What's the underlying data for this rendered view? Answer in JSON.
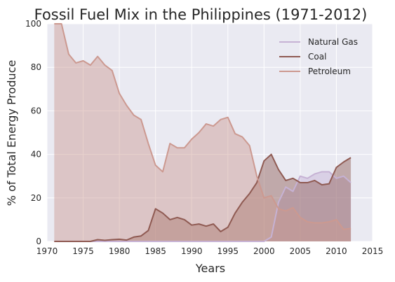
{
  "chart_data": {
    "type": "area",
    "title": "Fossil Fuel Mix in the Philippines (1971-2012)",
    "xlabel": "Years",
    "ylabel": "% of Total Energy Produce",
    "xlim": [
      1970,
      2015
    ],
    "ylim": [
      0,
      100
    ],
    "xticks": [
      1970,
      1975,
      1980,
      1985,
      1990,
      1995,
      2000,
      2005,
      2010,
      2015
    ],
    "yticks": [
      0,
      20,
      40,
      60,
      80,
      100
    ],
    "grid": true,
    "legend_position": "top-right",
    "x": [
      1971,
      1972,
      1973,
      1974,
      1975,
      1976,
      1977,
      1978,
      1979,
      1980,
      1981,
      1982,
      1983,
      1984,
      1985,
      1986,
      1987,
      1988,
      1989,
      1990,
      1991,
      1992,
      1993,
      1994,
      1995,
      1996,
      1997,
      1998,
      1999,
      2000,
      2001,
      2002,
      2003,
      2004,
      2005,
      2006,
      2007,
      2008,
      2009,
      2010,
      2011,
      2012
    ],
    "series": [
      {
        "name": "Natural Gas",
        "line_color": "#c6b2d4",
        "fill_color": "#c6b2d4",
        "values": [
          0,
          0,
          0,
          0,
          0,
          0,
          0,
          0,
          0,
          0,
          0,
          0,
          0,
          0,
          0,
          0,
          0,
          0,
          0,
          0,
          0,
          0,
          0,
          0,
          0,
          0,
          0,
          0,
          0,
          0,
          2,
          18,
          25,
          23,
          30,
          29,
          31,
          32,
          32,
          29,
          30,
          27
        ]
      },
      {
        "name": "Coal",
        "line_color": "#8f5a52",
        "fill_color": "#8f5a52",
        "values": [
          0,
          0,
          0,
          0,
          0,
          0,
          0.8,
          0.5,
          0.8,
          1,
          0.6,
          2,
          2.5,
          5,
          15,
          13,
          10,
          11,
          10,
          7.5,
          8,
          7,
          8,
          4.5,
          6.5,
          13,
          18,
          22,
          27,
          37,
          40,
          33,
          28,
          29,
          27,
          27,
          28,
          26,
          26.5,
          34,
          36.5,
          38.5
        ]
      },
      {
        "name": "Petroleum",
        "line_color": "#cc9990",
        "fill_color": "#cc9990",
        "values": [
          100,
          100,
          86,
          82,
          83,
          81,
          85,
          81,
          78.5,
          68,
          62.5,
          58,
          56,
          45,
          35,
          32,
          45,
          43,
          43,
          47,
          50,
          54,
          53,
          56,
          57,
          49.5,
          48,
          44,
          30,
          20,
          21,
          15,
          14,
          15.5,
          11,
          9,
          8.5,
          8.5,
          9,
          10,
          5.5,
          6
        ]
      }
    ]
  }
}
